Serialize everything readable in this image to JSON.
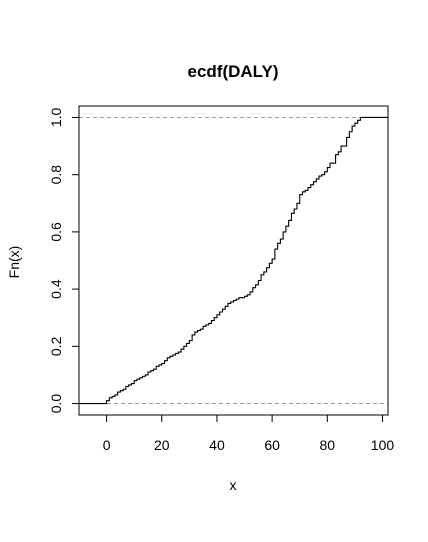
{
  "chart_data": {
    "type": "line",
    "subtype": "step",
    "title": "ecdf(DALY)",
    "xlabel": "x",
    "ylabel": "Fn(x)",
    "xlim": [
      -10,
      102
    ],
    "ylim": [
      -0.04,
      1.04
    ],
    "xticks": [
      0,
      20,
      40,
      60,
      80,
      100
    ],
    "yticks": [
      0.0,
      0.2,
      0.4,
      0.6,
      0.8,
      1.0
    ],
    "xtick_labels": [
      "0",
      "20",
      "40",
      "60",
      "80",
      "100"
    ],
    "ytick_labels": [
      "0.0",
      "0.2",
      "0.4",
      "0.6",
      "0.8",
      "1.0"
    ],
    "reference_lines": [
      0,
      1
    ],
    "series": [
      {
        "x": [
          0,
          1,
          2,
          3,
          4,
          5,
          6,
          7,
          8,
          9,
          10,
          11,
          12,
          13,
          14,
          15,
          16,
          17,
          18,
          19,
          20,
          21,
          22,
          23,
          24,
          25,
          26,
          27,
          28,
          29,
          30,
          31,
          32,
          33,
          34,
          35,
          36,
          37,
          38,
          39,
          40,
          41,
          42,
          43,
          44,
          45,
          46,
          47,
          48,
          49,
          50,
          51,
          52,
          53,
          54,
          55,
          56,
          57,
          58,
          59,
          60,
          61,
          62,
          63,
          64,
          65,
          66,
          67,
          68,
          69,
          70,
          71,
          72,
          73,
          74,
          75,
          76,
          77,
          78,
          79,
          80,
          81,
          82,
          83,
          84,
          85,
          86,
          87,
          88,
          89,
          90,
          91,
          92
        ],
        "y": [
          0.01,
          0.02,
          0.025,
          0.03,
          0.04,
          0.045,
          0.05,
          0.06,
          0.065,
          0.07,
          0.08,
          0.085,
          0.09,
          0.095,
          0.1,
          0.11,
          0.115,
          0.12,
          0.13,
          0.135,
          0.14,
          0.15,
          0.16,
          0.165,
          0.17,
          0.175,
          0.18,
          0.19,
          0.2,
          0.21,
          0.22,
          0.24,
          0.25,
          0.255,
          0.26,
          0.27,
          0.275,
          0.28,
          0.29,
          0.3,
          0.31,
          0.32,
          0.33,
          0.34,
          0.35,
          0.355,
          0.36,
          0.365,
          0.37,
          0.37,
          0.375,
          0.38,
          0.39,
          0.405,
          0.415,
          0.43,
          0.45,
          0.46,
          0.475,
          0.49,
          0.505,
          0.54,
          0.56,
          0.575,
          0.6,
          0.62,
          0.64,
          0.665,
          0.68,
          0.7,
          0.73,
          0.74,
          0.745,
          0.755,
          0.765,
          0.775,
          0.785,
          0.795,
          0.8,
          0.81,
          0.825,
          0.84,
          0.84,
          0.87,
          0.88,
          0.9,
          0.9,
          0.93,
          0.95,
          0.97,
          0.98,
          0.99,
          1.0
        ]
      }
    ]
  }
}
